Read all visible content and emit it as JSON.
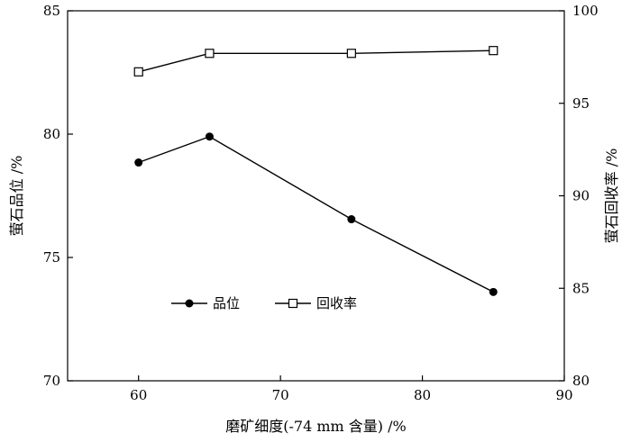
{
  "chart_data": {
    "type": "line",
    "xlabel": "磨矿细度(-74 mm 含量) /%",
    "ylabel_left": "萤石品位 /%",
    "ylabel_right": "萤石回收率 /%",
    "xlim": [
      55,
      90
    ],
    "ylim_left": [
      70,
      85
    ],
    "ylim_right": [
      80,
      100
    ],
    "x_ticks": [
      60,
      70,
      80,
      90
    ],
    "y_left_ticks": [
      70,
      75,
      80,
      85
    ],
    "y_right_ticks": [
      80,
      85,
      90,
      95,
      100
    ],
    "grid": false,
    "legend_position": "center-left",
    "series": [
      {
        "name": "品位",
        "axis": "left",
        "marker": "filled-circle",
        "color": "#000000",
        "x": [
          60,
          65,
          75,
          85
        ],
        "y": [
          78.85,
          79.9,
          76.55,
          73.6
        ]
      },
      {
        "name": "回收率",
        "axis": "right",
        "marker": "open-square",
        "color": "#000000",
        "x": [
          60,
          65,
          75,
          85
        ],
        "y": [
          96.7,
          97.7,
          97.7,
          97.85
        ]
      }
    ]
  }
}
